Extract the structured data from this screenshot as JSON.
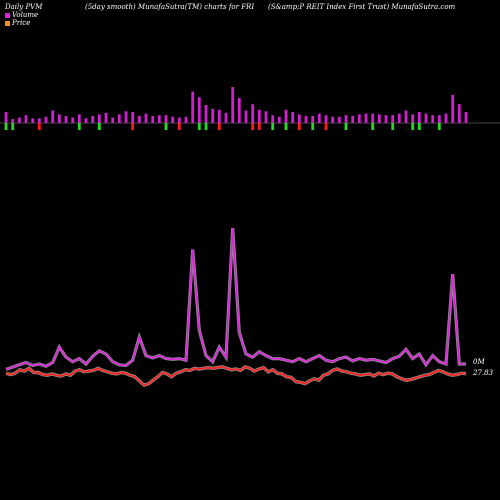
{
  "header": {
    "left": "Daily PVM",
    "center1": "(5day smooth) MunafaSutra(TM) charts for FRI",
    "center2": "(S&amp;P REIT Index First Trust) MunafaSutra.com"
  },
  "legend": {
    "volume_label": "Volume",
    "price_label": "Price",
    "volume_color": "#e020e0",
    "price_color": "#ff8c1a"
  },
  "labels": {
    "volume_end": "0M",
    "price_end": "27.83"
  },
  "colors": {
    "up": "#d020d0",
    "down_red": "#ff1a1a",
    "down_green": "#22dd22",
    "price_line": "#ff2020",
    "volume_line": "#e020e0"
  },
  "chart_data": [
    {
      "type": "bar",
      "name": "volume-bars",
      "values": [
        14,
        5,
        7,
        10,
        6,
        6,
        8,
        16,
        11,
        9,
        7,
        11,
        6,
        9,
        11,
        13,
        7,
        11,
        15,
        14,
        9,
        12,
        9,
        10,
        10,
        8,
        7,
        8,
        40,
        33,
        23,
        18,
        17,
        13,
        46,
        32,
        16,
        24,
        17,
        15,
        10,
        8,
        17,
        14,
        11,
        9,
        9,
        12,
        10,
        8,
        8,
        10,
        9,
        11,
        12,
        12,
        11,
        10,
        10,
        12,
        16,
        11,
        14,
        12,
        10,
        10,
        12,
        36,
        24,
        14
      ],
      "colors": [
        "up",
        "down_green",
        "up",
        "up",
        "up",
        "down_red",
        "up",
        "up",
        "up",
        "up",
        "up",
        "up",
        "up",
        "up",
        "up",
        "up",
        "up",
        "up",
        "up",
        "up",
        "up",
        "up",
        "up",
        "up",
        "up",
        "up",
        "up",
        "up",
        "up",
        "up",
        "up",
        "up",
        "up",
        "up",
        "up",
        "up",
        "up",
        "up",
        "up",
        "up",
        "up",
        "up",
        "up",
        "up",
        "up",
        "up",
        "up",
        "up",
        "up",
        "up",
        "up",
        "up",
        "up",
        "up",
        "up",
        "up",
        "up",
        "up",
        "up",
        "up",
        "up",
        "up",
        "up",
        "up",
        "up",
        "up",
        "up",
        "up",
        "up",
        "up"
      ],
      "down": [
        1,
        1,
        0,
        0,
        0,
        1,
        0,
        0,
        0,
        0,
        0,
        1,
        0,
        0,
        1,
        0,
        0,
        0,
        0,
        1,
        0,
        0,
        0,
        0,
        1,
        0,
        1,
        0,
        0,
        1,
        1,
        0,
        1,
        0,
        0,
        0,
        0,
        1,
        1,
        0,
        1,
        0,
        1,
        0,
        1,
        0,
        1,
        0,
        1,
        0,
        0,
        1,
        0,
        0,
        0,
        1,
        0,
        0,
        1,
        0,
        0,
        1,
        1,
        0,
        0,
        1,
        0,
        0,
        0,
        0
      ],
      "down_kind": [
        "green",
        "green",
        "",
        "",
        "",
        "red",
        "",
        "",
        "",
        "",
        "",
        "green",
        "",
        "",
        "green",
        "",
        "",
        "",
        "",
        "red",
        "",
        "",
        "",
        "",
        "green",
        "",
        "red",
        "",
        "",
        "green",
        "green",
        "",
        "red",
        "",
        "",
        "",
        "",
        "red",
        "red",
        "",
        "green",
        "",
        "green",
        "",
        "red",
        "",
        "green",
        "",
        "red",
        "",
        "",
        "green",
        "",
        "",
        "",
        "green",
        "",
        "",
        "green",
        "",
        "",
        "green",
        "green",
        "",
        "",
        "green",
        "",
        "",
        "",
        ""
      ]
    },
    {
      "type": "line",
      "name": "volume-line",
      "values": [
        0.6,
        0.9,
        1.2,
        1.5,
        1.1,
        1.3,
        1.0,
        1.5,
        3.5,
        2.2,
        1.6,
        2.0,
        1.3,
        2.3,
        3.0,
        2.6,
        1.6,
        1.2,
        1.1,
        1.8,
        4.8,
        2.4,
        2.1,
        2.4,
        2.0,
        1.9,
        2.0,
        1.8,
        16.2,
        5.7,
        2.4,
        1.6,
        3.5,
        2.2,
        19.0,
        5.4,
        2.6,
        2.2,
        2.9,
        2.4,
        2.0,
        2.0,
        1.8,
        1.6,
        2.0,
        1.6,
        2.0,
        2.4,
        1.8,
        1.6,
        2.0,
        2.2,
        1.7,
        2.0,
        1.8,
        1.9,
        1.7,
        1.5,
        2.0,
        2.3,
        3.2,
        2.0,
        2.6,
        1.2,
        2.4,
        1.6,
        1.3,
        13.0,
        1.3,
        1.3
      ]
    },
    {
      "type": "line",
      "name": "price-line",
      "values": [
        27.9,
        27.7,
        27.9,
        28.4,
        28.2,
        28.6,
        28.0,
        28.0,
        27.7,
        27.6,
        27.8,
        27.6,
        27.5,
        27.8,
        27.6,
        28.2,
        28.4,
        28.1,
        28.2,
        28.3,
        28.6,
        28.3,
        28.1,
        27.9,
        27.8,
        28.0,
        27.9,
        27.6,
        27.4,
        26.8,
        26.2,
        26.4,
        26.9,
        27.4,
        28.0,
        27.8,
        27.4,
        27.9,
        28.1,
        28.4,
        28.3,
        28.6,
        28.5,
        28.6,
        28.7,
        28.6,
        28.7,
        28.8,
        28.6,
        28.4,
        28.5,
        28.3,
        28.8,
        28.6,
        28.2,
        28.5,
        28.7,
        28.1,
        28.4,
        27.9,
        27.8,
        27.4,
        27.3,
        26.7,
        26.6,
        26.4,
        26.8,
        27.1,
        26.9,
        27.6,
        27.8,
        28.3,
        28.5,
        28.2,
        28.1,
        27.9,
        27.8,
        27.6,
        27.7,
        27.8,
        27.5,
        27.9,
        27.7,
        27.9,
        27.8,
        27.4,
        27.1,
        26.9,
        27.0,
        27.2,
        27.4,
        27.6,
        27.7,
        28.0,
        28.3,
        28.1,
        27.8,
        27.6,
        27.7,
        27.9,
        27.83
      ]
    }
  ]
}
